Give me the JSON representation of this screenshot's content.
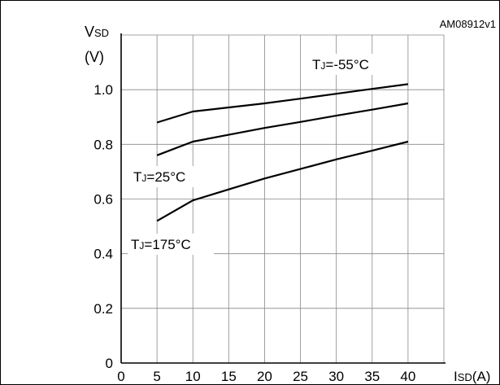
{
  "figure_id": "AM08912v1",
  "chart_data": {
    "type": "line",
    "xlabel": {
      "main": "I",
      "sub": "SD",
      "unit": "(A)"
    },
    "ylabel": {
      "main": "V",
      "sub": "SD",
      "unit": "(V)"
    },
    "xlim": [
      0,
      45
    ],
    "ylim": [
      0,
      1.2
    ],
    "x_ticks": [
      0,
      5,
      10,
      15,
      20,
      25,
      30,
      35,
      40
    ],
    "x_tick_labels": [
      "0",
      "5",
      "10",
      "15",
      "20",
      "25",
      "30",
      "35",
      "40"
    ],
    "y_ticks": [
      0,
      0.2,
      0.4,
      0.6,
      0.8,
      1.0
    ],
    "y_tick_labels": [
      "0",
      "0.2",
      "0.4",
      "0.6",
      "0.8",
      "1.0"
    ],
    "grid": true,
    "series": [
      {
        "name": "TJ=-55°C",
        "label_main": "T",
        "label_sub": "J",
        "label_rest": "=-55°C",
        "x": [
          5,
          10,
          15,
          20,
          25,
          30,
          35,
          40
        ],
        "y": [
          0.88,
          0.92,
          0.935,
          0.95,
          0.967,
          0.985,
          1.003,
          1.02
        ]
      },
      {
        "name": "TJ=25°C",
        "label_main": "T",
        "label_sub": "J",
        "label_rest": "=25°C",
        "x": [
          5,
          10,
          15,
          20,
          25,
          30,
          35,
          40
        ],
        "y": [
          0.76,
          0.81,
          0.835,
          0.86,
          0.882,
          0.905,
          0.927,
          0.95
        ]
      },
      {
        "name": "TJ=175°C",
        "label_main": "T",
        "label_sub": "J",
        "label_rest": "=175°C",
        "x": [
          5,
          10,
          15,
          20,
          25,
          30,
          35,
          40
        ],
        "y": [
          0.52,
          0.595,
          0.635,
          0.675,
          0.71,
          0.745,
          0.777,
          0.81
        ]
      }
    ]
  }
}
